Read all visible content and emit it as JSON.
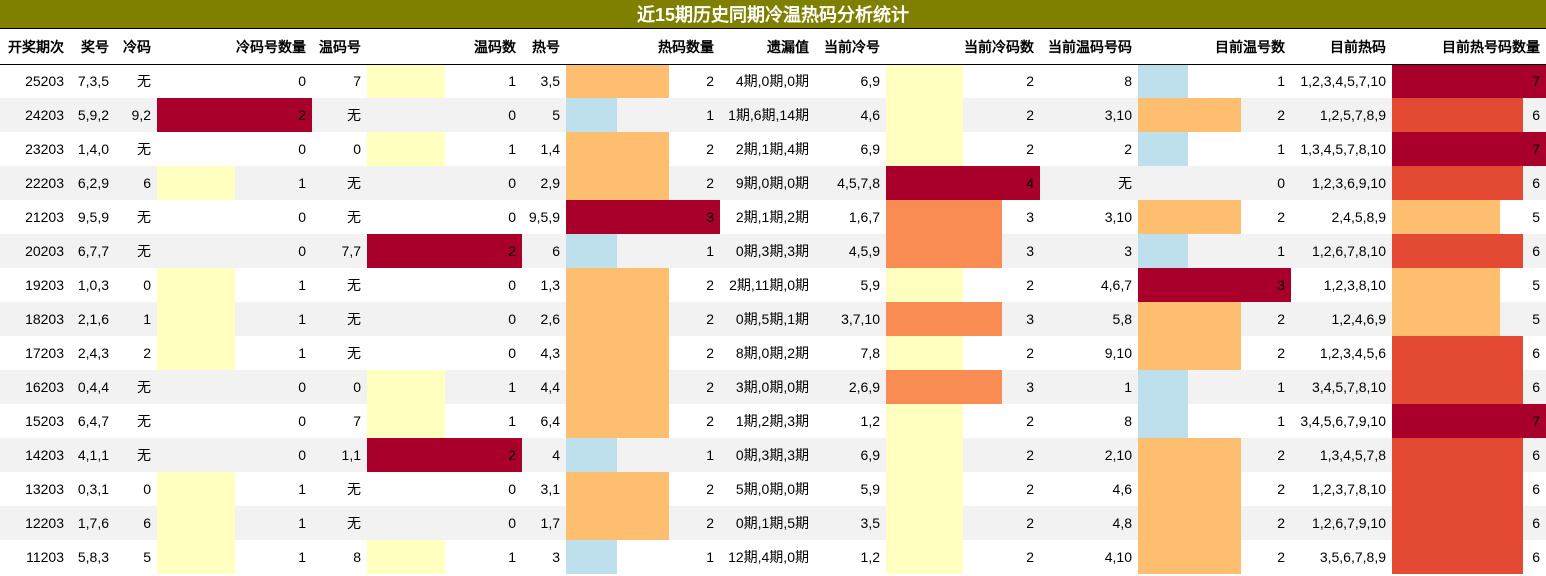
{
  "title": "近15期历史同期冷温热码分析统计",
  "headers": [
    "开奖期次",
    "奖号",
    "冷码",
    "冷码号数量",
    "温码号",
    "温码数",
    "热号",
    "热码数量",
    "遗漏值",
    "当前冷号",
    "当前冷码数",
    "当前温码号码",
    "目前温号数",
    "目前热码",
    "目前热号码数量"
  ],
  "colors": {
    "header_bg": "#808000",
    "level_1_max3": "#ffffc0",
    "level_2_max3": "#fdbe70",
    "level_3_max3": "#a8002a",
    "level_1_of_3_blue": "#bde0ec",
    "level_3_of_4": "#f98c52",
    "level_5_of_7": "#fdbe70",
    "level_6_of_7": "#e44a33",
    "level_7_of_7": "#a8002a"
  },
  "rows": [
    {
      "period": "25203",
      "prize": "7,3,5",
      "cold": "无",
      "cold_count": 0,
      "warm": "7",
      "warm_count": 1,
      "hot": "3,5",
      "hot_count": 2,
      "missing": "4期,0期,0期",
      "cur_cold": "6,9",
      "cur_cold_count": 2,
      "cur_warm": "8",
      "cur_warm_count": 1,
      "cur_hot": "1,2,3,4,5,7,10",
      "cur_hot_count": 7
    },
    {
      "period": "24203",
      "prize": "5,9,2",
      "cold": "9,2",
      "cold_count": 2,
      "warm": "无",
      "warm_count": 0,
      "hot": "5",
      "hot_count": 1,
      "missing": "1期,6期,14期",
      "cur_cold": "4,6",
      "cur_cold_count": 2,
      "cur_warm": "3,10",
      "cur_warm_count": 2,
      "cur_hot": "1,2,5,7,8,9",
      "cur_hot_count": 6
    },
    {
      "period": "23203",
      "prize": "1,4,0",
      "cold": "无",
      "cold_count": 0,
      "warm": "0",
      "warm_count": 1,
      "hot": "1,4",
      "hot_count": 2,
      "missing": "2期,1期,4期",
      "cur_cold": "6,9",
      "cur_cold_count": 2,
      "cur_warm": "2",
      "cur_warm_count": 1,
      "cur_hot": "1,3,4,5,7,8,10",
      "cur_hot_count": 7
    },
    {
      "period": "22203",
      "prize": "6,2,9",
      "cold": "6",
      "cold_count": 1,
      "warm": "无",
      "warm_count": 0,
      "hot": "2,9",
      "hot_count": 2,
      "missing": "9期,0期,0期",
      "cur_cold": "4,5,7,8",
      "cur_cold_count": 4,
      "cur_warm": "无",
      "cur_warm_count": 0,
      "cur_hot": "1,2,3,6,9,10",
      "cur_hot_count": 6
    },
    {
      "period": "21203",
      "prize": "9,5,9",
      "cold": "无",
      "cold_count": 0,
      "warm": "无",
      "warm_count": 0,
      "hot": "9,5,9",
      "hot_count": 3,
      "missing": "2期,1期,2期",
      "cur_cold": "1,6,7",
      "cur_cold_count": 3,
      "cur_warm": "3,10",
      "cur_warm_count": 2,
      "cur_hot": "2,4,5,8,9",
      "cur_hot_count": 5
    },
    {
      "period": "20203",
      "prize": "6,7,7",
      "cold": "无",
      "cold_count": 0,
      "warm": "7,7",
      "warm_count": 2,
      "hot": "6",
      "hot_count": 1,
      "missing": "0期,3期,3期",
      "cur_cold": "4,5,9",
      "cur_cold_count": 3,
      "cur_warm": "3",
      "cur_warm_count": 1,
      "cur_hot": "1,2,6,7,8,10",
      "cur_hot_count": 6
    },
    {
      "period": "19203",
      "prize": "1,0,3",
      "cold": "0",
      "cold_count": 1,
      "warm": "无",
      "warm_count": 0,
      "hot": "1,3",
      "hot_count": 2,
      "missing": "2期,11期,0期",
      "cur_cold": "5,9",
      "cur_cold_count": 2,
      "cur_warm": "4,6,7",
      "cur_warm_count": 3,
      "cur_hot": "1,2,3,8,10",
      "cur_hot_count": 5
    },
    {
      "period": "18203",
      "prize": "2,1,6",
      "cold": "1",
      "cold_count": 1,
      "warm": "无",
      "warm_count": 0,
      "hot": "2,6",
      "hot_count": 2,
      "missing": "0期,5期,1期",
      "cur_cold": "3,7,10",
      "cur_cold_count": 3,
      "cur_warm": "5,8",
      "cur_warm_count": 2,
      "cur_hot": "1,2,4,6,9",
      "cur_hot_count": 5
    },
    {
      "period": "17203",
      "prize": "2,4,3",
      "cold": "2",
      "cold_count": 1,
      "warm": "无",
      "warm_count": 0,
      "hot": "4,3",
      "hot_count": 2,
      "missing": "8期,0期,2期",
      "cur_cold": "7,8",
      "cur_cold_count": 2,
      "cur_warm": "9,10",
      "cur_warm_count": 2,
      "cur_hot": "1,2,3,4,5,6",
      "cur_hot_count": 6
    },
    {
      "period": "16203",
      "prize": "0,4,4",
      "cold": "无",
      "cold_count": 0,
      "warm": "0",
      "warm_count": 1,
      "hot": "4,4",
      "hot_count": 2,
      "missing": "3期,0期,0期",
      "cur_cold": "2,6,9",
      "cur_cold_count": 3,
      "cur_warm": "1",
      "cur_warm_count": 1,
      "cur_hot": "3,4,5,7,8,10",
      "cur_hot_count": 6
    },
    {
      "period": "15203",
      "prize": "6,4,7",
      "cold": "无",
      "cold_count": 0,
      "warm": "7",
      "warm_count": 1,
      "hot": "6,4",
      "hot_count": 2,
      "missing": "1期,2期,3期",
      "cur_cold": "1,2",
      "cur_cold_count": 2,
      "cur_warm": "8",
      "cur_warm_count": 1,
      "cur_hot": "3,4,5,6,7,9,10",
      "cur_hot_count": 7
    },
    {
      "period": "14203",
      "prize": "4,1,1",
      "cold": "无",
      "cold_count": 0,
      "warm": "1,1",
      "warm_count": 2,
      "hot": "4",
      "hot_count": 1,
      "missing": "0期,3期,3期",
      "cur_cold": "6,9",
      "cur_cold_count": 2,
      "cur_warm": "2,10",
      "cur_warm_count": 2,
      "cur_hot": "1,3,4,5,7,8",
      "cur_hot_count": 6
    },
    {
      "period": "13203",
      "prize": "0,3,1",
      "cold": "0",
      "cold_count": 1,
      "warm": "无",
      "warm_count": 0,
      "hot": "3,1",
      "hot_count": 2,
      "missing": "5期,0期,0期",
      "cur_cold": "5,9",
      "cur_cold_count": 2,
      "cur_warm": "4,6",
      "cur_warm_count": 2,
      "cur_hot": "1,2,3,7,8,10",
      "cur_hot_count": 6
    },
    {
      "period": "12203",
      "prize": "1,7,6",
      "cold": "6",
      "cold_count": 1,
      "warm": "无",
      "warm_count": 0,
      "hot": "1,7",
      "hot_count": 2,
      "missing": "0期,1期,5期",
      "cur_cold": "3,5",
      "cur_cold_count": 2,
      "cur_warm": "4,8",
      "cur_warm_count": 2,
      "cur_hot": "1,2,6,7,9,10",
      "cur_hot_count": 6
    },
    {
      "period": "11203",
      "prize": "5,8,3",
      "cold": "5",
      "cold_count": 1,
      "warm": "8",
      "warm_count": 1,
      "hot": "3",
      "hot_count": 1,
      "missing": "12期,4期,0期",
      "cur_cold": "1,2",
      "cur_cold_count": 2,
      "cur_warm": "4,10",
      "cur_warm_count": 2,
      "cur_hot": "3,5,6,7,8,9",
      "cur_hot_count": 6
    }
  ]
}
